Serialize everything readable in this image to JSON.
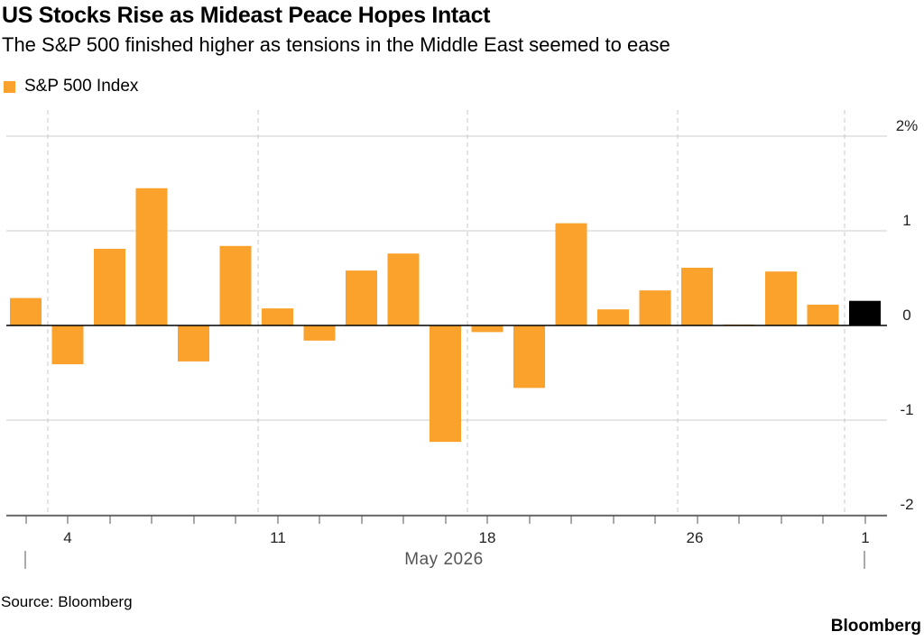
{
  "title": "US Stocks Rise as Mideast Peace Hopes Intact",
  "subtitle": "The S&P 500 finished higher as tensions in the Middle East seemed to ease",
  "legend": {
    "label": "S&P 500 Index",
    "color": "#fba22d"
  },
  "source": "Source: Bloomberg",
  "brand": "Bloomberg",
  "chart_data": {
    "type": "bar",
    "title": "US Stocks Rise as Mideast Peace Hopes Intact",
    "subtitle": "The S&P 500 finished higher as tensions in the Middle East seemed to ease",
    "series": [
      {
        "name": "S&P 500 Index",
        "color": "#fba22d",
        "highlight_color": "#000000",
        "highlight_last": true,
        "values": [
          0.29,
          -0.41,
          0.81,
          1.45,
          -0.38,
          0.84,
          0.18,
          -0.16,
          0.58,
          0.76,
          -1.23,
          -0.07,
          -0.66,
          1.08,
          0.17,
          0.37,
          0.61,
          0.01,
          0.57,
          0.22,
          0.26
        ]
      }
    ],
    "ylim": [
      -2,
      2
    ],
    "yticks": [
      2,
      1,
      0,
      -1,
      -2
    ],
    "ytick_labels": [
      "2%",
      "1",
      "0",
      "-1",
      "-2"
    ],
    "x_tick_labels": [
      "4",
      "11",
      "18",
      "26",
      "1"
    ],
    "x_period_label": "May 2026",
    "grid": true,
    "legend_position": "top-left"
  }
}
